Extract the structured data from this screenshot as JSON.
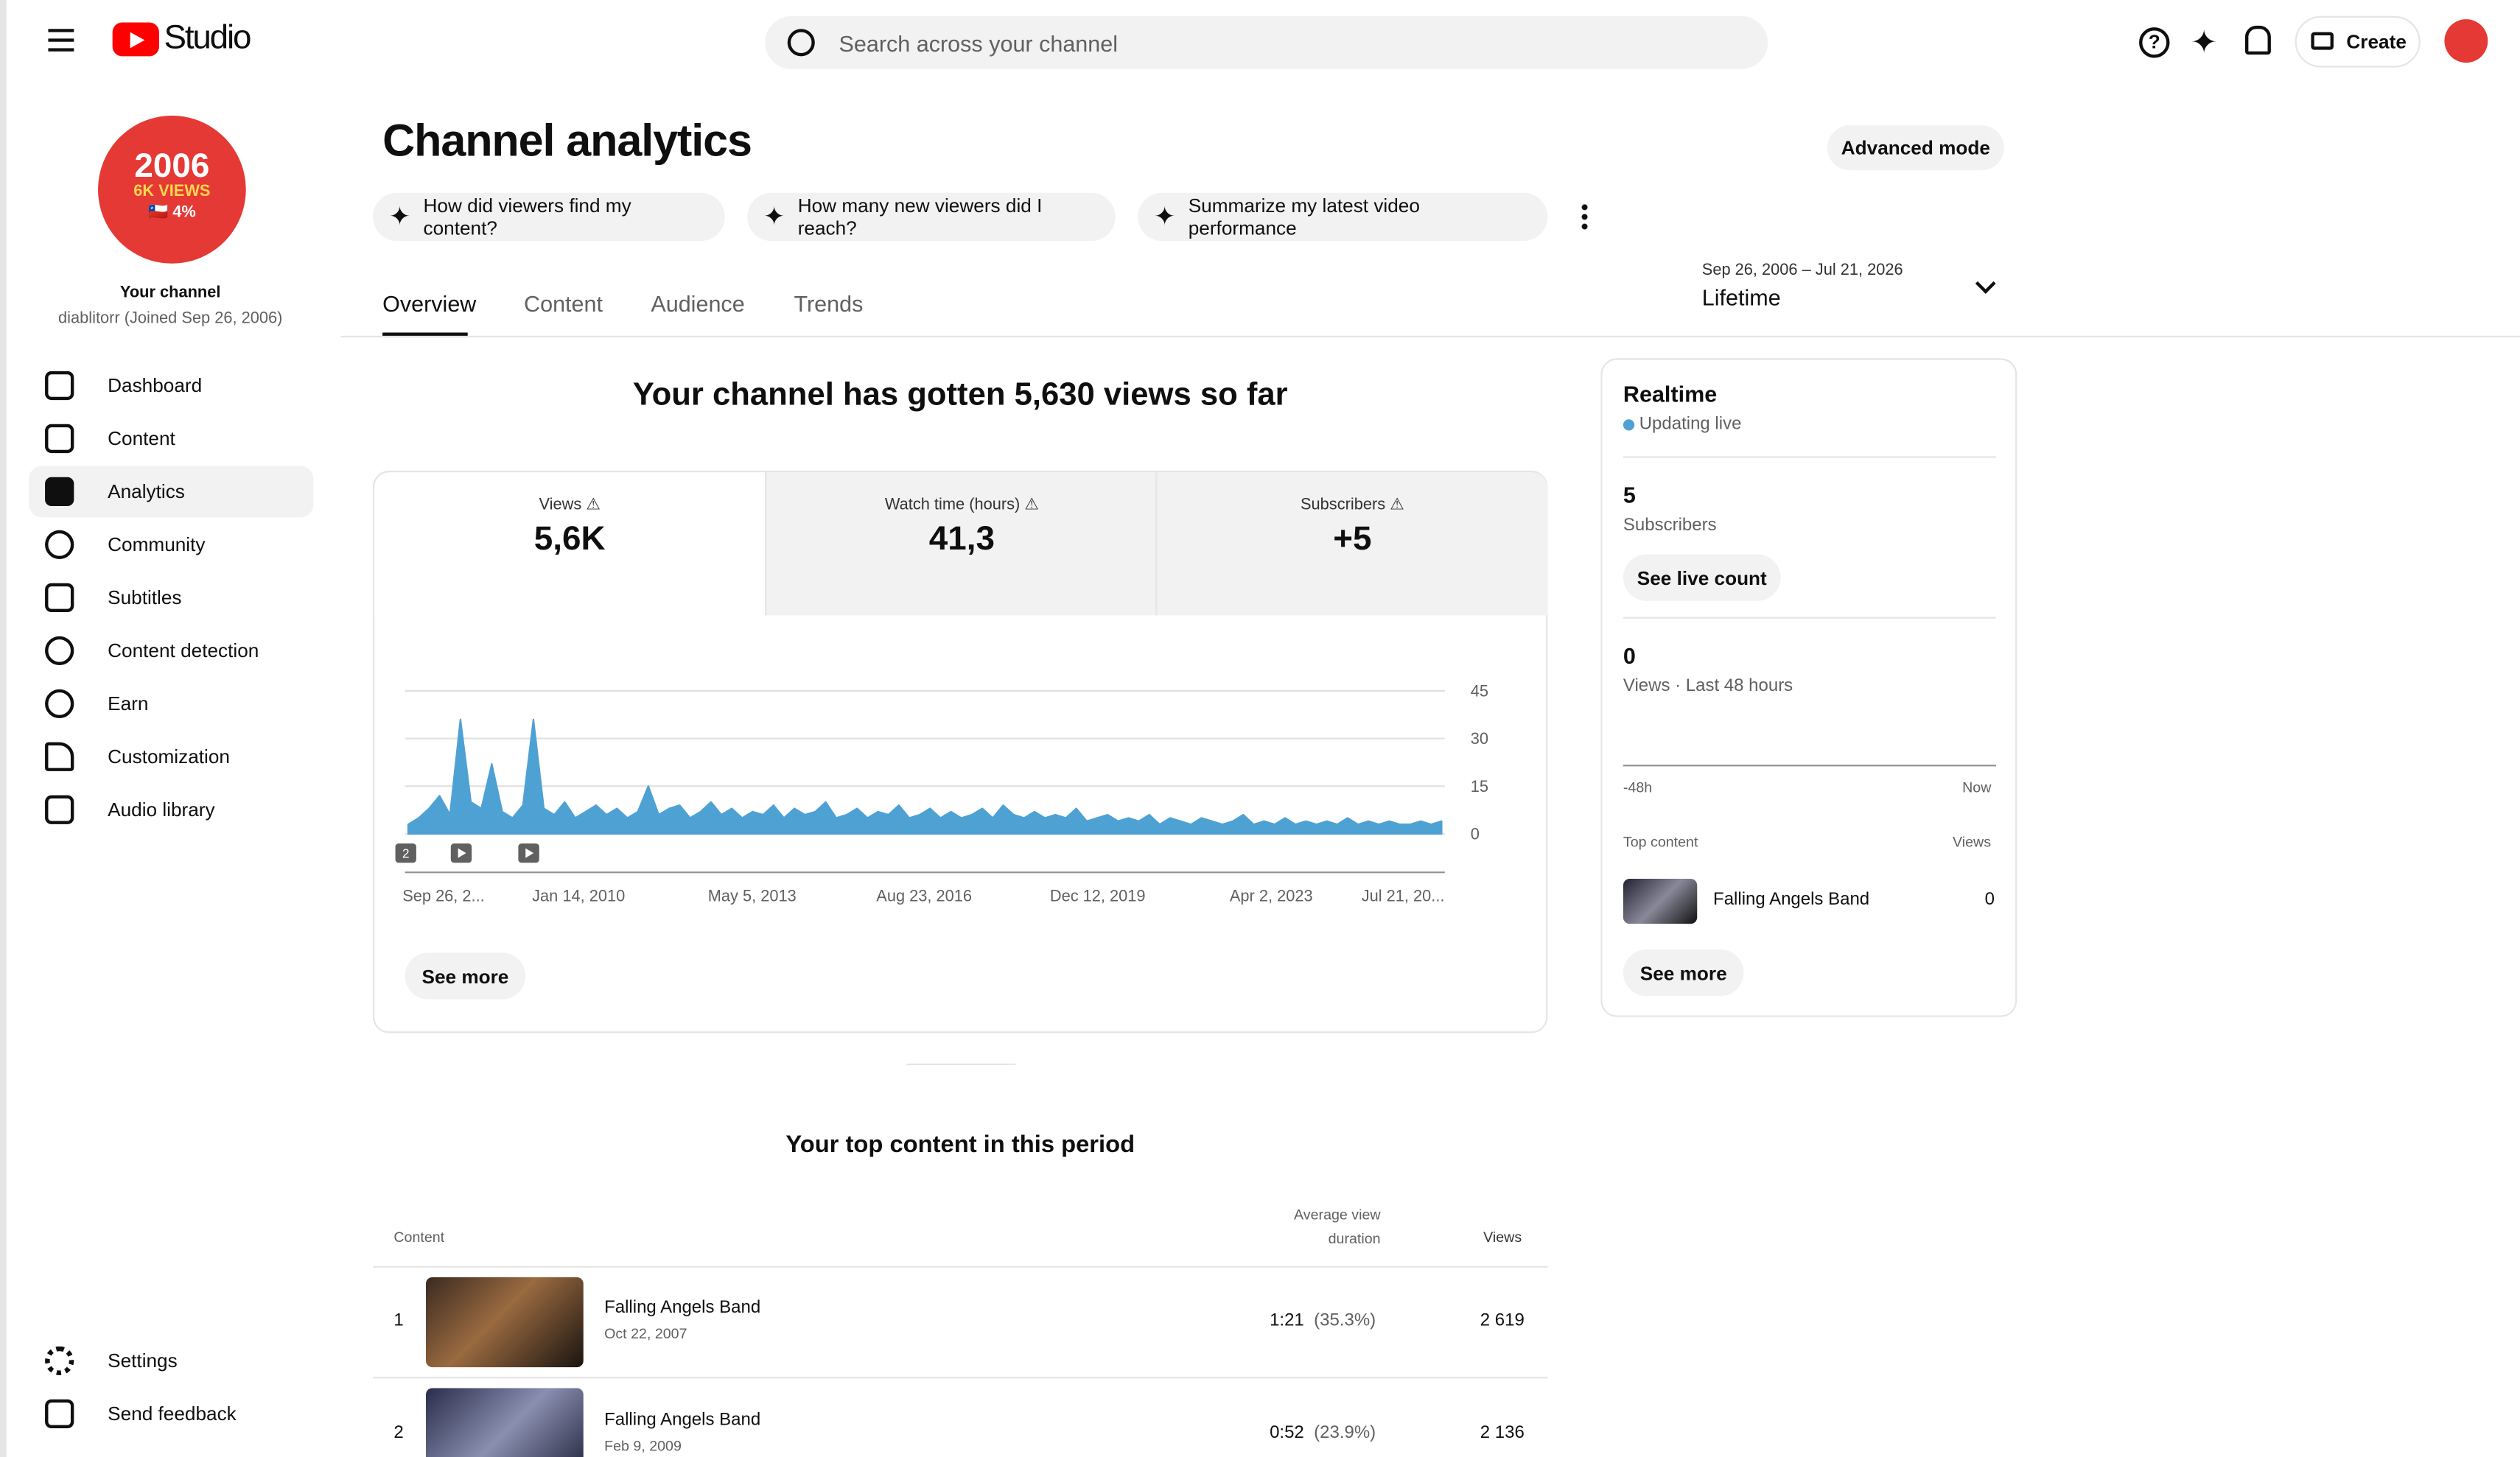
{
  "header": {
    "logo": "Studio",
    "search_placeholder": "Search across your channel",
    "create": "Create"
  },
  "sidebar": {
    "avatar": {
      "line1": "2006",
      "line2": "6K VIEWS",
      "line3": "🇨🇱 4%"
    },
    "channel_label": "Your channel",
    "channel_meta": "diablitorr (Joined Sep 26, 2006)",
    "nav": [
      "Dashboard",
      "Content",
      "Analytics",
      "Community",
      "Subtitles",
      "Content detection",
      "Earn",
      "Customization",
      "Audio library"
    ],
    "footer_nav": [
      "Settings",
      "Send feedback"
    ]
  },
  "main": {
    "title": "Channel analytics",
    "advanced_mode": "Advanced mode",
    "prompts": [
      "How did viewers find my content?",
      "How many new viewers did I reach?",
      "Summarize my latest video performance"
    ],
    "tabs": [
      "Overview",
      "Content",
      "Audience",
      "Trends"
    ],
    "date_range": "Sep 26, 2006 – Jul 21, 2026",
    "period": "Lifetime"
  },
  "overview": {
    "headline": "Your channel has gotten 5,630 views so far",
    "metrics": [
      {
        "label": "Views",
        "value": "5,6K"
      },
      {
        "label": "Watch time (hours)",
        "value": "41,3"
      },
      {
        "label": "Subscribers",
        "value": "+5"
      }
    ],
    "see_more": "See more",
    "marker_badge": "2"
  },
  "chart_data": {
    "type": "area",
    "color": "#4ea1d3",
    "x_labels": [
      "Sep 26, 2...",
      "Jan 14, 2010",
      "May 5, 2013",
      "Aug 23, 2016",
      "Dec 12, 2019",
      "Apr 2, 2023",
      "Jul 21, 20..."
    ],
    "values": [
      3,
      5,
      8,
      12,
      6,
      36,
      10,
      8,
      22,
      7,
      5,
      9,
      36,
      8,
      6,
      10,
      5,
      7,
      9,
      6,
      8,
      5,
      7,
      15,
      6,
      8,
      9,
      5,
      7,
      10,
      6,
      8,
      5,
      7,
      6,
      9,
      5,
      8,
      6,
      7,
      10,
      5,
      6,
      8,
      5,
      7,
      6,
      9,
      5,
      6,
      8,
      5,
      7,
      5,
      6,
      8,
      5,
      9,
      6,
      5,
      7,
      5,
      6,
      5,
      8,
      4,
      5,
      6,
      4,
      5,
      4,
      6,
      3,
      5,
      4,
      3,
      5,
      4,
      3,
      4,
      6,
      3,
      4,
      3,
      5,
      3,
      4,
      3,
      4,
      3,
      5,
      3,
      4,
      3,
      4,
      3,
      3,
      4,
      3,
      4
    ],
    "ylim": [
      0,
      45
    ],
    "yticks": [
      0,
      15,
      30,
      45
    ],
    "grid": true
  },
  "realtime": {
    "title": "Realtime",
    "status": "Updating live",
    "subscribers": "5",
    "subscribers_label": "Subscribers",
    "see_live_count": "See live count",
    "views": "0",
    "views_label": "Views · Last 48 hours",
    "axis_start": "-48h",
    "axis_end": "Now",
    "top_content": "Top content",
    "views_header": "Views",
    "item": {
      "title": "Falling Angels Band",
      "views": "0"
    },
    "see_more": "See more"
  },
  "top_content": {
    "title": "Your top content in this period",
    "columns": [
      "Content",
      "Average view duration",
      "Views"
    ],
    "rows": [
      {
        "rank": "1",
        "title": "Falling Angels Band",
        "date": "Oct 22, 2007",
        "duration": "1:21",
        "percent": "(35.3%)",
        "views": "2 619"
      },
      {
        "rank": "2",
        "title": "Falling Angels Band",
        "date": "Feb 9, 2009",
        "duration": "0:52",
        "percent": "(23.9%)",
        "views": "2 136"
      }
    ]
  }
}
